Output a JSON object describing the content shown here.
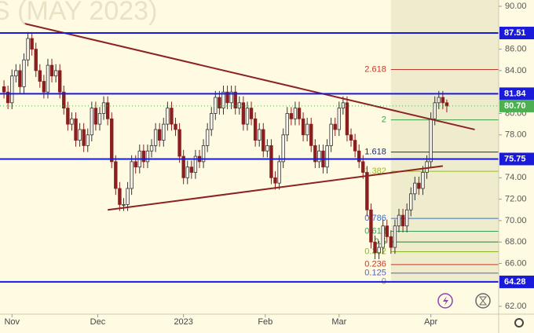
{
  "chart_data": {
    "type": "candlestick",
    "title": "S (MAY 2023)",
    "xlim": [
      -1,
      124
    ],
    "ylim": [
      61.27,
      90.59
    ],
    "xticks": [
      {
        "value": 2,
        "label": "Nov"
      },
      {
        "value": 23.5,
        "label": "Dec"
      },
      {
        "value": 45,
        "label": "2023"
      },
      {
        "value": 65.5,
        "label": "Feb"
      },
      {
        "value": 84,
        "label": "Mar"
      },
      {
        "value": 107,
        "label": "Apr"
      }
    ],
    "yticks": [
      {
        "value": 62,
        "label": "62.00"
      },
      {
        "value": 66,
        "label": "66.00"
      },
      {
        "value": 68,
        "label": "68.00"
      },
      {
        "value": 70,
        "label": "70.00"
      },
      {
        "value": 72,
        "label": "72.00"
      },
      {
        "value": 74,
        "label": "74.00"
      },
      {
        "value": 78,
        "label": "78.00"
      },
      {
        "value": 80,
        "label": "80.00"
      },
      {
        "value": 84,
        "label": "84.00"
      },
      {
        "value": 86,
        "label": "86.00"
      },
      {
        "value": 90,
        "label": "90.00"
      }
    ],
    "up_color": "#f7f5ee",
    "down_color": "#8b1f1f",
    "open": [
      82.5,
      82.0,
      81.0,
      83.5,
      84.0,
      82.5,
      85.0,
      87.0,
      86.0,
      84.0,
      83.0,
      82.0,
      84.5,
      83.5,
      84.0,
      82.0,
      80.5,
      79.0,
      79.5,
      77.5,
      78.5,
      77.0,
      78.0,
      80.5,
      79.0,
      80.0,
      81.0,
      79.5,
      75.5,
      73.0,
      71.5,
      71.5,
      73.0,
      75.5,
      75.0,
      76.5,
      75.5,
      76.5,
      77.0,
      78.5,
      77.5,
      79.0,
      80.5,
      79.0,
      78.5,
      76.0,
      74.0,
      75.0,
      74.5,
      76.0,
      75.5,
      77.0,
      78.5,
      80.0,
      81.5,
      80.5,
      82.0,
      81.0,
      82.0,
      80.5,
      81.0,
      79.0,
      80.5,
      79.5,
      77.5,
      78.5,
      76.5,
      77.0,
      74.0,
      73.5,
      75.5,
      78.0,
      80.0,
      79.5,
      80.5,
      79.5,
      78.0,
      79.0,
      77.0,
      75.5,
      76.5,
      75.0,
      77.0,
      79.0,
      78.5,
      80.5,
      81.0,
      78.0,
      77.5,
      76.5,
      75.5,
      74.5,
      71.0,
      68.0,
      67.0,
      67.5,
      69.5,
      68.5,
      67.5,
      69.5,
      70.5,
      69.5,
      71.0,
      72.5,
      73.5,
      73.0,
      74.5,
      75.5,
      79.5,
      81.0,
      81.5,
      81.0
    ],
    "high": [
      83.1,
      82.6,
      84.1,
      84.6,
      84.6,
      85.6,
      87.6,
      87.6,
      86.6,
      84.6,
      83.6,
      85.1,
      85.1,
      84.6,
      84.6,
      82.6,
      81.1,
      80.1,
      80.1,
      79.1,
      79.1,
      78.6,
      81.1,
      81.1,
      80.6,
      81.6,
      81.6,
      80.1,
      76.1,
      73.6,
      72.1,
      73.6,
      76.1,
      76.1,
      77.1,
      77.1,
      77.1,
      77.6,
      79.1,
      79.1,
      79.6,
      81.1,
      81.1,
      79.6,
      79.1,
      76.6,
      75.6,
      75.6,
      76.6,
      76.6,
      77.6,
      79.1,
      80.6,
      82.1,
      82.1,
      82.6,
      82.6,
      82.6,
      82.6,
      81.6,
      81.6,
      81.1,
      81.1,
      80.1,
      79.1,
      79.1,
      77.6,
      77.6,
      74.6,
      76.1,
      78.6,
      80.6,
      80.6,
      81.1,
      81.1,
      80.1,
      79.6,
      79.6,
      77.6,
      77.1,
      77.1,
      77.6,
      79.6,
      79.6,
      81.1,
      81.6,
      81.6,
      78.6,
      78.1,
      77.1,
      76.1,
      75.1,
      71.6,
      68.6,
      68.1,
      70.1,
      70.1,
      69.1,
      70.1,
      71.1,
      71.1,
      71.6,
      73.1,
      74.1,
      74.1,
      75.1,
      76.1,
      80.1,
      81.6,
      82.1,
      82.1,
      81.3
    ],
    "low": [
      81.4,
      80.4,
      80.4,
      82.9,
      81.9,
      81.9,
      84.4,
      85.4,
      83.4,
      82.4,
      81.4,
      81.4,
      82.9,
      82.9,
      81.4,
      79.9,
      78.4,
      78.4,
      76.9,
      76.9,
      76.4,
      76.4,
      77.4,
      78.4,
      78.4,
      79.4,
      78.9,
      74.9,
      72.4,
      70.9,
      70.9,
      70.9,
      72.4,
      74.4,
      74.4,
      74.9,
      74.9,
      75.9,
      76.4,
      76.9,
      76.9,
      78.4,
      78.4,
      77.9,
      75.4,
      73.4,
      73.4,
      73.9,
      73.9,
      74.9,
      74.9,
      76.4,
      77.9,
      79.4,
      79.9,
      79.9,
      80.4,
      80.4,
      79.9,
      79.9,
      78.4,
      78.4,
      78.9,
      76.9,
      76.9,
      75.9,
      75.9,
      73.4,
      72.9,
      72.9,
      74.9,
      77.4,
      78.9,
      78.9,
      78.9,
      77.4,
      77.4,
      76.4,
      74.9,
      74.9,
      74.4,
      74.4,
      76.4,
      77.9,
      77.9,
      79.9,
      77.4,
      76.9,
      75.9,
      74.9,
      73.9,
      70.4,
      67.4,
      66.4,
      66.4,
      66.9,
      67.9,
      66.9,
      66.9,
      68.9,
      68.9,
      68.9,
      70.4,
      71.9,
      72.4,
      72.4,
      73.9,
      74.9,
      78.9,
      80.4,
      80.4,
      80.1
    ],
    "close": [
      82.0,
      81.0,
      83.5,
      84.0,
      82.5,
      85.0,
      87.0,
      86.0,
      84.0,
      83.0,
      82.0,
      84.5,
      83.5,
      84.0,
      82.0,
      80.5,
      79.0,
      79.5,
      77.5,
      78.5,
      77.0,
      78.0,
      80.5,
      79.0,
      80.0,
      81.0,
      79.5,
      75.5,
      73.0,
      71.5,
      71.5,
      73.0,
      75.5,
      75.0,
      76.5,
      75.5,
      76.5,
      77.0,
      78.5,
      77.5,
      79.0,
      80.5,
      79.0,
      78.5,
      76.0,
      74.0,
      75.0,
      74.5,
      76.0,
      75.5,
      77.0,
      78.5,
      80.0,
      81.5,
      80.5,
      82.0,
      81.0,
      82.0,
      80.5,
      81.0,
      79.0,
      80.5,
      79.5,
      77.5,
      78.5,
      76.5,
      77.0,
      74.0,
      73.5,
      75.5,
      78.0,
      80.0,
      79.5,
      80.5,
      79.5,
      78.0,
      79.0,
      77.0,
      75.5,
      76.5,
      75.0,
      77.0,
      79.0,
      78.5,
      80.5,
      81.0,
      78.0,
      77.5,
      76.5,
      75.5,
      74.5,
      71.0,
      68.0,
      67.0,
      67.5,
      69.5,
      68.5,
      67.5,
      69.5,
      70.5,
      69.5,
      71.0,
      72.5,
      73.5,
      73.0,
      74.5,
      75.5,
      79.5,
      81.0,
      81.5,
      81.0,
      80.7
    ],
    "levels": [
      {
        "value": 87.51,
        "label": "87.51"
      },
      {
        "value": 81.84,
        "label": "81.84"
      },
      {
        "value": 75.75,
        "label": "75.75"
      },
      {
        "value": 64.28,
        "label": "64.28"
      }
    ],
    "level_color": "#1a1adb",
    "last": {
      "value": 80.7,
      "label": "80.70",
      "color": "#4caf50"
    },
    "trendlines": [
      {
        "x": [
          5,
          118
        ],
        "y": [
          88.4,
          78.5
        ]
      },
      {
        "x": [
          26,
          110
        ],
        "y": [
          71.0,
          75.1
        ]
      }
    ],
    "trend_color": "#8b2323",
    "fib_start": 97,
    "fib_levels": [
      {
        "value": 84.1,
        "label": "2.618",
        "color": "#c0392b"
      },
      {
        "value": 79.4,
        "label": "2",
        "color": "#43a047"
      },
      {
        "value": 76.4,
        "label": "1.618",
        "color": "#1e2a78"
      },
      {
        "value": 74.6,
        "label": "1.382",
        "color": "#9cb82a"
      },
      {
        "value": 70.2,
        "label": "0.786",
        "color": "#3b6fc0"
      },
      {
        "value": 69.0,
        "label": "0.618",
        "color": "#3aa05a"
      },
      {
        "value": 68.0,
        "label": "0.5",
        "color": "#2e7d32"
      },
      {
        "value": 67.1,
        "label": "0.382",
        "color": "#8fb526"
      },
      {
        "value": 65.9,
        "label": "0.236",
        "color": "#c0392b"
      },
      {
        "value": 65.1,
        "label": "0.125",
        "color": "#5a5ac8"
      },
      {
        "value": 64.3,
        "label": "0",
        "color": "#888888"
      }
    ]
  }
}
